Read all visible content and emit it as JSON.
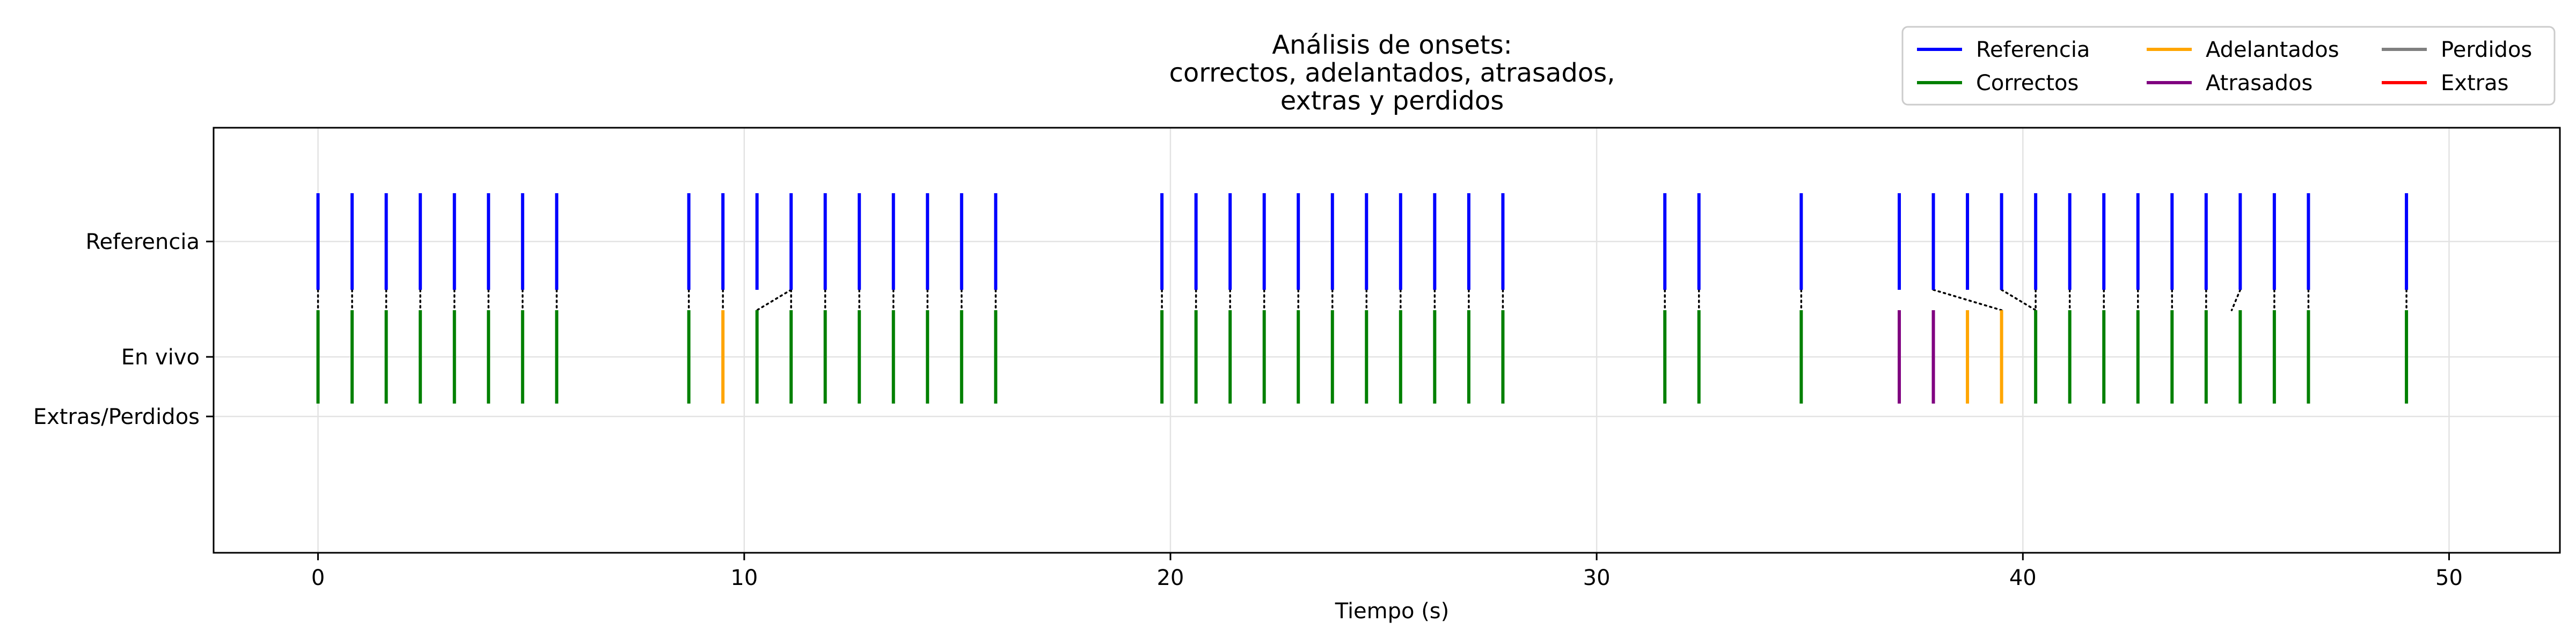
{
  "chart_data": {
    "type": "event-plot",
    "title_lines": [
      "Análisis de onsets:",
      "correctos, adelantados, atrasados,",
      "extras y perdidos"
    ],
    "xlabel": "Tiempo (s)",
    "ylabel": "",
    "xlim": [
      -2.45,
      52.6
    ],
    "xticks": [
      0,
      10,
      20,
      30,
      40,
      50
    ],
    "xtick_labels": [
      "0",
      "10",
      "20",
      "30",
      "40",
      "50"
    ],
    "yticks": [
      {
        "label": "Referencia",
        "value": 2
      },
      {
        "label": "En vivo",
        "value": 1
      },
      {
        "label": "Extras/Perdidos",
        "value": 0.5
      }
    ],
    "grid": true,
    "legend": {
      "placement": "top-right",
      "columns": 3,
      "entries": [
        {
          "label": "Referencia",
          "color": "#0000ff"
        },
        {
          "label": "Correctos",
          "color": "#008000"
        },
        {
          "label": "Adelantados",
          "color": "#ffa500"
        },
        {
          "label": "Atrasados",
          "color": "#800080"
        },
        {
          "label": "Perdidos",
          "color": "#808080"
        },
        {
          "label": "Extras",
          "color": "#ff0000"
        }
      ]
    },
    "series": [
      {
        "name": "Referencia",
        "color": "#0000ff",
        "times": [
          0,
          0.8,
          1.6,
          2.4,
          3.2,
          4.0,
          4.8,
          5.6,
          8.7,
          9.5,
          10.3,
          11.1,
          11.9,
          12.7,
          13.5,
          14.3,
          15.1,
          15.9,
          19.8,
          20.6,
          21.4,
          22.2,
          23.0,
          23.8,
          24.6,
          25.4,
          26.2,
          27.0,
          27.8,
          31.6,
          32.4,
          34.8,
          37.1,
          37.9,
          38.7,
          39.5,
          40.3,
          41.1,
          41.9,
          42.7,
          43.5,
          44.3,
          45.1,
          45.9,
          46.7,
          49.0
        ]
      },
      {
        "name": "Correctos",
        "color": "#008000",
        "times": [
          0,
          0.8,
          1.6,
          2.4,
          3.2,
          4.0,
          4.8,
          5.6,
          8.7,
          10.3,
          11.1,
          11.9,
          12.7,
          13.5,
          14.3,
          15.1,
          15.9,
          19.8,
          20.6,
          21.4,
          22.2,
          23.0,
          23.8,
          24.6,
          25.4,
          26.2,
          27.0,
          27.8,
          31.6,
          32.4,
          34.8,
          40.3,
          41.1,
          41.9,
          42.7,
          43.5,
          44.3,
          45.1,
          45.9,
          46.7,
          49.0
        ]
      },
      {
        "name": "Adelantados",
        "color": "#ffa500",
        "times": [
          9.5,
          38.7,
          39.5
        ]
      },
      {
        "name": "Atrasados",
        "color": "#800080",
        "times": [
          37.1,
          37.9
        ]
      },
      {
        "name": "Perdidos",
        "color": "#808080",
        "times": []
      },
      {
        "name": "Extras",
        "color": "#ff0000",
        "times": []
      }
    ],
    "matches": [
      [
        0,
        0
      ],
      [
        0.8,
        0.8
      ],
      [
        1.6,
        1.6
      ],
      [
        2.4,
        2.4
      ],
      [
        3.2,
        3.2
      ],
      [
        4.0,
        4.0
      ],
      [
        4.8,
        4.8
      ],
      [
        5.6,
        5.6
      ],
      [
        8.7,
        8.7
      ],
      [
        9.5,
        9.5
      ],
      [
        11.1,
        10.3
      ],
      [
        11.1,
        11.1
      ],
      [
        11.9,
        11.9
      ],
      [
        12.7,
        12.7
      ],
      [
        13.5,
        13.5
      ],
      [
        14.3,
        14.3
      ],
      [
        15.1,
        15.1
      ],
      [
        15.9,
        15.9
      ],
      [
        19.8,
        19.8
      ],
      [
        20.6,
        20.6
      ],
      [
        21.4,
        21.4
      ],
      [
        22.2,
        22.2
      ],
      [
        23.0,
        23.0
      ],
      [
        23.8,
        23.8
      ],
      [
        24.6,
        24.6
      ],
      [
        25.4,
        25.4
      ],
      [
        26.2,
        26.2
      ],
      [
        27.0,
        27.0
      ],
      [
        27.8,
        27.8
      ],
      [
        31.6,
        31.6
      ],
      [
        32.4,
        32.4
      ],
      [
        34.8,
        34.8
      ],
      [
        37.9,
        39.5
      ],
      [
        39.5,
        40.3
      ],
      [
        40.3,
        40.3
      ],
      [
        41.1,
        41.1
      ],
      [
        41.9,
        41.9
      ],
      [
        42.7,
        42.7
      ],
      [
        43.5,
        43.5
      ],
      [
        44.3,
        44.3
      ],
      [
        45.1,
        44.9
      ],
      [
        45.9,
        45.9
      ],
      [
        46.7,
        46.7
      ],
      [
        49.0,
        49.0
      ]
    ]
  }
}
